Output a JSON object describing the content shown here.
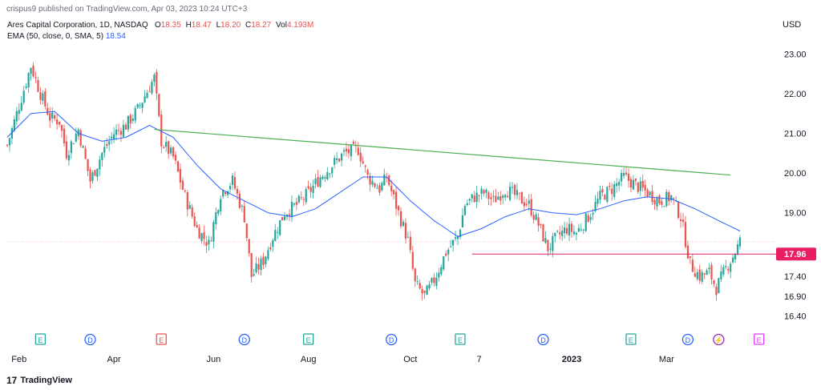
{
  "publisher_text": "crispus9 published on TradingView.com, Apr 03, 2023 10:24 UTC+3",
  "legend": {
    "symbol": "Ares Capital Corporation, 1D, NASDAQ",
    "o_label": "O",
    "o_value": "18.35",
    "h_label": "H",
    "h_value": "18.47",
    "l_label": "L",
    "l_value": "18.20",
    "c_label": "C",
    "c_value": "18.27",
    "vol_label": "Vol",
    "vol_value": "4.193M",
    "ema_label": "EMA (50, close, 0, SMA, 5)",
    "ema_value": "18.54"
  },
  "brand": {
    "logo": "17",
    "name": "TradingView"
  },
  "colors": {
    "up": "#26a69a",
    "down": "#ef5350",
    "ema": "#2962ff",
    "trend": "#4caf50",
    "level": "#e91e63",
    "event_green": "#26a69a",
    "event_blue": "#2962ff",
    "event_red": "#ef5350",
    "event_purple": "#9c27b0",
    "event_pink": "#e040fb"
  },
  "chart_data": {
    "type": "candlestick",
    "currency": "USD",
    "y_ticks": [
      23.0,
      22.0,
      21.0,
      20.0,
      19.0,
      18.0,
      17.4,
      16.9,
      16.4
    ],
    "y_tick_labels": [
      "23.00",
      "22.00",
      "21.00",
      "20.00",
      "19.00",
      "",
      "17.40",
      "16.90",
      "16.40"
    ],
    "ylim": [
      16.25,
      23.35
    ],
    "x_labels": [
      {
        "label": "Feb",
        "bold": false
      },
      {
        "label": "Apr",
        "bold": false
      },
      {
        "label": "Jun",
        "bold": false
      },
      {
        "label": "Aug",
        "bold": false
      },
      {
        "label": "Oct",
        "bold": false
      },
      {
        "label": "7",
        "bold": false
      },
      {
        "label": "2023",
        "bold": true
      },
      {
        "label": "Mar",
        "bold": false
      }
    ],
    "x_label_index": [
      5,
      45,
      87,
      127,
      170,
      199,
      238,
      278
    ],
    "price_label": "17.96",
    "horizontal_level": 17.96,
    "last_close": 18.27,
    "trendline": {
      "from": {
        "index": 62,
        "price": 21.1
      },
      "to": {
        "index": 305,
        "price": 19.95
      }
    },
    "support_segment": {
      "from_index": 196,
      "to_index": 320,
      "price": 17.96
    },
    "events": [
      {
        "type": "E",
        "kind": "earnings",
        "index": 14
      },
      {
        "type": "D",
        "kind": "dividend",
        "index": 35
      },
      {
        "type": "E",
        "kind": "earnings-red",
        "index": 65
      },
      {
        "type": "D",
        "kind": "dividend",
        "index": 100
      },
      {
        "type": "E",
        "kind": "earnings",
        "index": 127
      },
      {
        "type": "D",
        "kind": "dividend",
        "index": 162
      },
      {
        "type": "E",
        "kind": "earnings",
        "index": 191
      },
      {
        "type": "D",
        "kind": "dividend",
        "index": 226
      },
      {
        "type": "E",
        "kind": "earnings",
        "index": 263
      },
      {
        "type": "D",
        "kind": "dividend",
        "index": 287
      },
      {
        "type": "⚡",
        "kind": "split",
        "index": 300
      },
      {
        "type": "E",
        "kind": "earnings-pink",
        "index": 317
      }
    ],
    "close_anchors": [
      [
        0,
        20.7
      ],
      [
        6,
        21.9
      ],
      [
        10,
        22.7
      ],
      [
        14,
        22.0
      ],
      [
        18,
        21.4
      ],
      [
        22,
        21.3
      ],
      [
        25,
        20.5
      ],
      [
        30,
        21.1
      ],
      [
        35,
        19.8
      ],
      [
        40,
        20.5
      ],
      [
        45,
        21.0
      ],
      [
        50,
        21.2
      ],
      [
        55,
        21.6
      ],
      [
        62,
        22.4
      ],
      [
        65,
        20.8
      ],
      [
        70,
        20.4
      ],
      [
        75,
        19.4
      ],
      [
        80,
        18.6
      ],
      [
        85,
        18.2
      ],
      [
        90,
        19.5
      ],
      [
        95,
        19.8
      ],
      [
        100,
        18.9
      ],
      [
        103,
        17.4
      ],
      [
        108,
        17.8
      ],
      [
        112,
        18.4
      ],
      [
        117,
        19.0
      ],
      [
        122,
        19.2
      ],
      [
        127,
        19.5
      ],
      [
        132,
        19.9
      ],
      [
        137,
        20.2
      ],
      [
        142,
        20.5
      ],
      [
        148,
        20.6
      ],
      [
        152,
        19.9
      ],
      [
        157,
        19.6
      ],
      [
        160,
        19.9
      ],
      [
        165,
        19.0
      ],
      [
        169,
        18.3
      ],
      [
        172,
        17.2
      ],
      [
        176,
        16.9
      ],
      [
        180,
        17.3
      ],
      [
        185,
        18.0
      ],
      [
        190,
        18.4
      ],
      [
        193,
        19.2
      ],
      [
        197,
        19.4
      ],
      [
        201,
        19.5
      ],
      [
        205,
        19.3
      ],
      [
        210,
        19.6
      ],
      [
        215,
        19.4
      ],
      [
        220,
        19.2
      ],
      [
        224,
        18.7
      ],
      [
        228,
        18.1
      ],
      [
        232,
        18.4
      ],
      [
        236,
        18.6
      ],
      [
        240,
        18.5
      ],
      [
        245,
        18.9
      ],
      [
        250,
        19.4
      ],
      [
        255,
        19.6
      ],
      [
        260,
        19.9
      ],
      [
        265,
        19.7
      ],
      [
        270,
        19.5
      ],
      [
        275,
        19.3
      ],
      [
        280,
        19.4
      ],
      [
        284,
        18.9
      ],
      [
        288,
        17.7
      ],
      [
        292,
        17.4
      ],
      [
        296,
        17.5
      ],
      [
        299,
        17.1
      ],
      [
        303,
        17.6
      ],
      [
        306,
        17.9
      ],
      [
        309,
        18.27
      ]
    ],
    "ema_anchors": [
      [
        0,
        20.9
      ],
      [
        10,
        21.5
      ],
      [
        20,
        21.55
      ],
      [
        30,
        21.0
      ],
      [
        40,
        20.8
      ],
      [
        50,
        20.9
      ],
      [
        60,
        21.2
      ],
      [
        70,
        20.9
      ],
      [
        80,
        20.2
      ],
      [
        90,
        19.6
      ],
      [
        100,
        19.3
      ],
      [
        110,
        19.0
      ],
      [
        120,
        18.9
      ],
      [
        130,
        19.1
      ],
      [
        140,
        19.5
      ],
      [
        150,
        19.9
      ],
      [
        160,
        19.9
      ],
      [
        170,
        19.3
      ],
      [
        180,
        18.8
      ],
      [
        190,
        18.4
      ],
      [
        200,
        18.6
      ],
      [
        210,
        18.9
      ],
      [
        220,
        19.1
      ],
      [
        230,
        19.0
      ],
      [
        240,
        18.95
      ],
      [
        250,
        19.1
      ],
      [
        260,
        19.3
      ],
      [
        270,
        19.4
      ],
      [
        280,
        19.35
      ],
      [
        290,
        19.1
      ],
      [
        300,
        18.8
      ],
      [
        309,
        18.54
      ]
    ]
  }
}
